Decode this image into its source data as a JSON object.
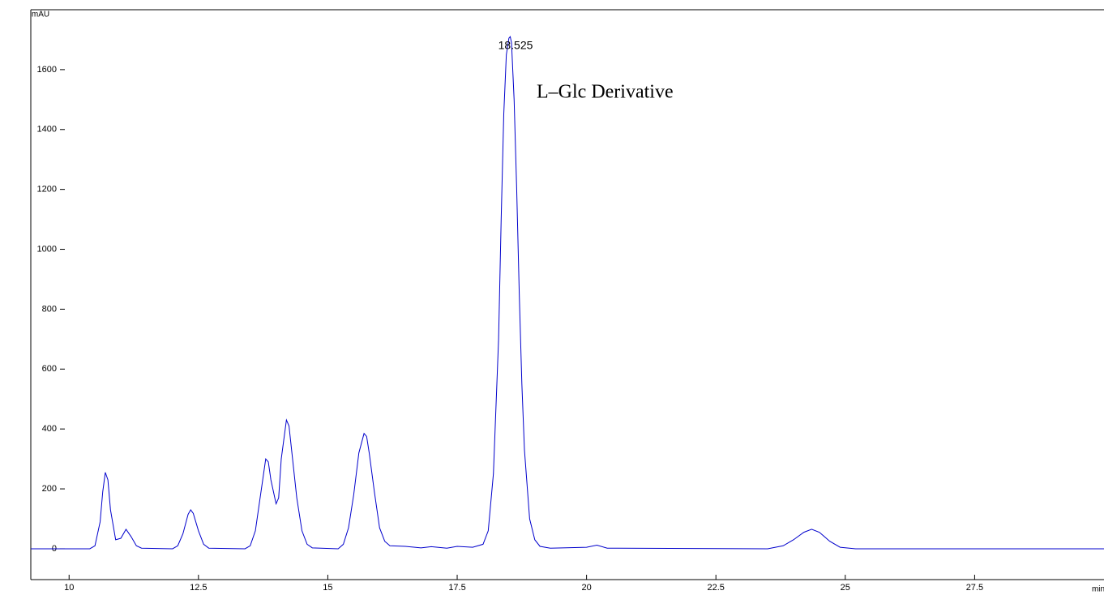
{
  "chart_data": {
    "type": "line",
    "y_label": "mAU",
    "x_label": "min",
    "annotations": [
      "18.525",
      "L–Glc Derivative"
    ],
    "color": "#0000cc",
    "x": [
      9.26,
      10.4,
      10.5,
      10.6,
      10.65,
      10.7,
      10.75,
      10.8,
      10.9,
      11.0,
      11.1,
      11.2,
      11.3,
      11.4,
      12.0,
      12.1,
      12.2,
      12.3,
      12.35,
      12.4,
      12.5,
      12.6,
      12.7,
      13.4,
      13.5,
      13.6,
      13.7,
      13.8,
      13.85,
      13.9,
      14.0,
      14.05,
      14.1,
      14.2,
      14.25,
      14.3,
      14.4,
      14.5,
      14.6,
      14.7,
      15.2,
      15.3,
      15.4,
      15.5,
      15.6,
      15.7,
      15.75,
      15.8,
      15.9,
      16.0,
      16.1,
      16.2,
      16.5,
      16.8,
      17.0,
      17.3,
      17.5,
      17.8,
      18.0,
      18.1,
      18.2,
      18.3,
      18.35,
      18.4,
      18.45,
      18.5,
      18.525,
      18.55,
      18.6,
      18.65,
      18.7,
      18.75,
      18.8,
      18.9,
      19.0,
      19.1,
      19.3,
      20.0,
      20.2,
      20.4,
      23.5,
      23.8,
      24.0,
      24.2,
      24.35,
      24.5,
      24.7,
      24.9,
      25.2,
      30
    ],
    "values": [
      0,
      0,
      10,
      90,
      190,
      255,
      230,
      130,
      30,
      35,
      65,
      40,
      10,
      2,
      0,
      10,
      50,
      115,
      130,
      118,
      60,
      15,
      2,
      0,
      10,
      60,
      180,
      300,
      290,
      230,
      150,
      170,
      300,
      430,
      410,
      330,
      170,
      60,
      15,
      3,
      0,
      15,
      70,
      180,
      320,
      385,
      375,
      320,
      190,
      70,
      25,
      10,
      8,
      3,
      7,
      2,
      8,
      5,
      15,
      60,
      250,
      700,
      1100,
      1450,
      1650,
      1705,
      1710,
      1690,
      1500,
      1200,
      850,
      550,
      330,
      100,
      30,
      8,
      2,
      5,
      12,
      2,
      0,
      10,
      30,
      55,
      65,
      55,
      25,
      5,
      0,
      0
    ],
    "xlim": [
      9.26,
      30
    ],
    "xticks": [
      10,
      12.5,
      15,
      17.5,
      20,
      22.5,
      25,
      27.5
    ],
    "ylim": [
      -103,
      1800
    ],
    "yticks": [
      0,
      200,
      400,
      600,
      800,
      1000,
      1200,
      1400,
      1600
    ]
  }
}
